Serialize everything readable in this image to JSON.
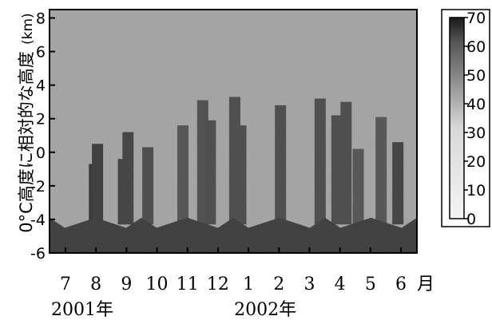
{
  "chart_data": {
    "type": "heatmap",
    "title": "",
    "ylabel": "0°C高度に相対的な高度",
    "ylabel_unit": "(km)",
    "ylim": [
      -6,
      8.5
    ],
    "yticks": [
      8,
      6,
      4,
      2,
      0,
      -2,
      -4,
      -6
    ],
    "xunit": "月",
    "months": [
      "7",
      "8",
      "9",
      "10",
      "11",
      "12",
      "1",
      "2",
      "3",
      "4",
      "5",
      "6"
    ],
    "years": [
      {
        "label": "2001年",
        "month_index": 0
      },
      {
        "label": "2002年",
        "month_index": 6
      }
    ],
    "colorbar": {
      "min": 0,
      "max": 70,
      "ticks": [
        70,
        60,
        50,
        40,
        30,
        20,
        10,
        0
      ],
      "low_color": "#f2f2f2",
      "high_color": "#1a1a1a"
    },
    "background_value": 25,
    "ground_level_km": -4.3,
    "clear_columns": [
      {
        "x": 0.95,
        "top": -0.7,
        "value": 62
      },
      {
        "x": 1.05,
        "top": 0.5,
        "value": 60
      },
      {
        "x": 1.9,
        "top": -0.4,
        "value": 58
      },
      {
        "x": 2.05,
        "top": 1.2,
        "value": 58
      },
      {
        "x": 2.7,
        "top": 0.3,
        "value": 55
      },
      {
        "x": 3.85,
        "top": 1.6,
        "value": 52
      },
      {
        "x": 4.5,
        "top": 3.1,
        "value": 54
      },
      {
        "x": 4.75,
        "top": 1.9,
        "value": 55
      },
      {
        "x": 5.55,
        "top": 3.3,
        "value": 55
      },
      {
        "x": 5.75,
        "top": 1.6,
        "value": 55
      },
      {
        "x": 7.05,
        "top": 2.8,
        "value": 55
      },
      {
        "x": 8.35,
        "top": 3.2,
        "value": 55
      },
      {
        "x": 8.9,
        "top": 2.2,
        "value": 55
      },
      {
        "x": 9.2,
        "top": 3.0,
        "value": 55
      },
      {
        "x": 9.6,
        "top": 0.2,
        "value": 52
      },
      {
        "x": 10.35,
        "top": 2.1,
        "value": 52
      },
      {
        "x": 10.9,
        "top": 0.6,
        "value": 58
      }
    ]
  }
}
